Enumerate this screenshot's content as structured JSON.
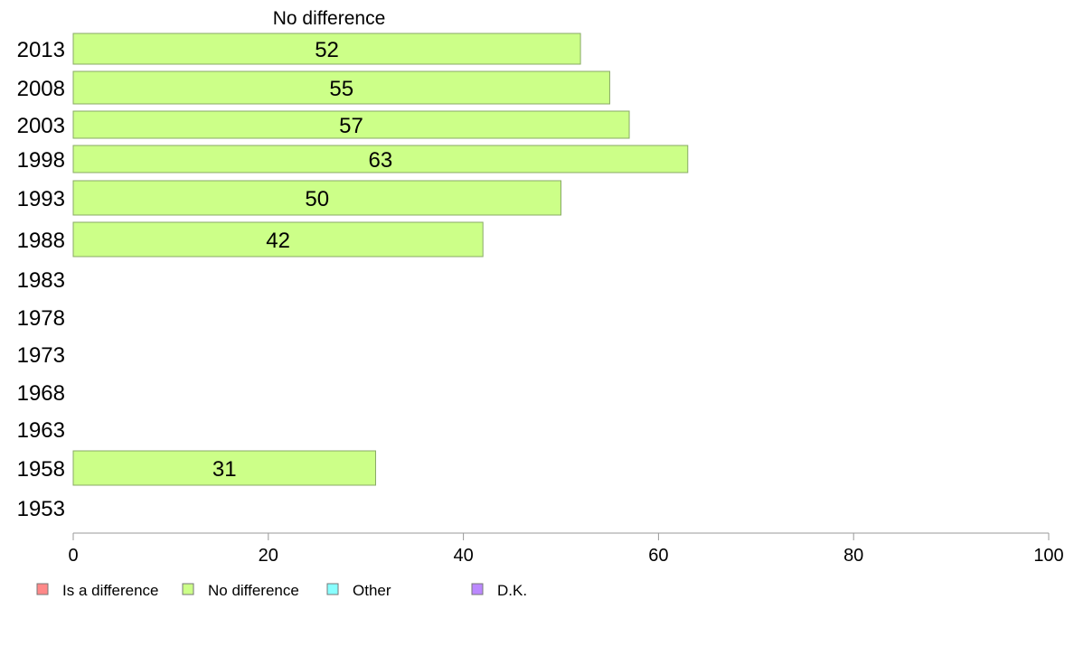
{
  "chart_data": {
    "type": "bar",
    "orientation": "horizontal",
    "title": "No difference",
    "categories": [
      "2013",
      "2008",
      "2003",
      "1998",
      "1993",
      "1988",
      "1983",
      "1978",
      "1973",
      "1968",
      "1963",
      "1958",
      "1953"
    ],
    "series": [
      {
        "name": "No difference",
        "values": [
          52,
          55,
          57,
          63,
          50,
          42,
          null,
          null,
          null,
          null,
          null,
          31,
          null
        ],
        "color": "#ccff88"
      }
    ],
    "xlim": [
      0,
      100
    ],
    "xticks": [
      0,
      20,
      40,
      60,
      80,
      100
    ],
    "grid": false,
    "legend": {
      "placement": "bottom-left",
      "items": [
        {
          "label": "Is a difference",
          "color": "#ff8888"
        },
        {
          "label": "No difference",
          "color": "#ccff88"
        },
        {
          "label": "Other",
          "color": "#88ffff"
        },
        {
          "label": "D.K.",
          "color": "#bb88ff"
        }
      ]
    }
  }
}
